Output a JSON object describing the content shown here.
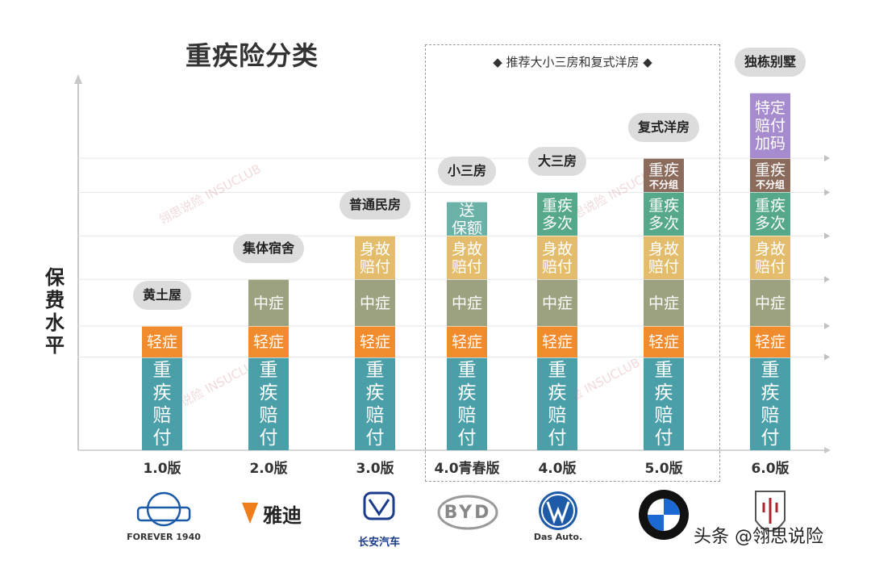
{
  "title": "重疾险分类",
  "ylabel": "保费水平",
  "highlight_caption": "◆ 推荐大小三房和复式洋房 ◆",
  "watermark": "翎思说险 INSUCLUB",
  "footer": "头条 @翎思说险",
  "colors": {
    "critical": "#4a9fa8",
    "mild": "#f08b2e",
    "moderate": "#9ca27f",
    "death": "#e3bd6c",
    "multi": "#56a88a",
    "nongroup": "#8a6b5c",
    "bonus": "#a68ccf",
    "extra": "#6ab2a8"
  },
  "chart_data": {
    "type": "bar",
    "subtype": "stacked",
    "categories": [
      "1.0版",
      "2.0版",
      "3.0版",
      "4.0青春版",
      "4.0版",
      "5.0版",
      "6.0版"
    ],
    "tags": [
      "黄土屋",
      "集体宿舍",
      "普通民房",
      "小三房",
      "大三房",
      "复式洋房",
      "独栋别墅"
    ],
    "ylabel": "保费水平",
    "note": "y values are relative layer levels read from gridlines (no numeric axis)",
    "series": [
      {
        "name": "重疾赔付",
        "lines": [
          "重",
          "疾",
          "赔",
          "付"
        ],
        "color_key": "critical",
        "values": [
          3,
          3,
          3,
          3,
          3,
          3,
          3
        ]
      },
      {
        "name": "轻症",
        "lines": [
          "轻症"
        ],
        "color_key": "mild",
        "values": [
          1,
          1,
          1,
          1,
          1,
          1,
          1
        ]
      },
      {
        "name": "中症",
        "lines": [
          "中症"
        ],
        "color_key": "moderate",
        "values": [
          0,
          1.5,
          1.5,
          1.5,
          1.5,
          1.5,
          1.5
        ]
      },
      {
        "name": "身故赔付",
        "lines": [
          "身故",
          "赔付"
        ],
        "color_key": "death",
        "values": [
          0,
          0,
          1.4,
          1.4,
          1.4,
          1.4,
          1.4
        ]
      },
      {
        "name": "送保额",
        "lines": [
          "送",
          "保额"
        ],
        "color_key": "extra",
        "values": [
          0,
          0,
          0,
          1.1,
          0,
          0,
          0
        ]
      },
      {
        "name": "重疾多次",
        "lines": [
          "重疾",
          "多次"
        ],
        "color_key": "multi",
        "values": [
          0,
          0,
          0,
          0,
          1.4,
          1.4,
          1.4
        ]
      },
      {
        "name": "重疾不分组",
        "lines": [
          "重疾"
        ],
        "sublabel": "不分组",
        "color_key": "nongroup",
        "values": [
          0,
          0,
          0,
          0,
          0,
          1.1,
          1.1
        ]
      },
      {
        "name": "特定赔付加码",
        "lines": [
          "特定",
          "赔付",
          "加码"
        ],
        "color_key": "bonus",
        "values": [
          0,
          0,
          0,
          0,
          0,
          0,
          2.1
        ]
      }
    ],
    "grid": true,
    "highlight": {
      "label": "◆ 推荐大小三房和复式洋房 ◆",
      "categories": [
        "4.0青春版",
        "4.0版",
        "5.0版"
      ]
    }
  },
  "logos": [
    {
      "name": "上海永久",
      "sub": "FOREVER 1940",
      "color": "#1a5aa8"
    },
    {
      "name": "雅迪",
      "sub": "",
      "color": "#222222"
    },
    {
      "name": "长安汽车",
      "sub": "",
      "color": "#1b3c8c"
    },
    {
      "name": "BYD",
      "sub": "",
      "color": "#9a9a9a"
    },
    {
      "name": "VW",
      "sub": "Das Auto.",
      "color": "#1e5aa8"
    },
    {
      "name": "BMW",
      "sub": "",
      "color": "#1c69d4"
    },
    {
      "name": "MASERATI",
      "sub": "",
      "color": "#b0202c"
    }
  ]
}
